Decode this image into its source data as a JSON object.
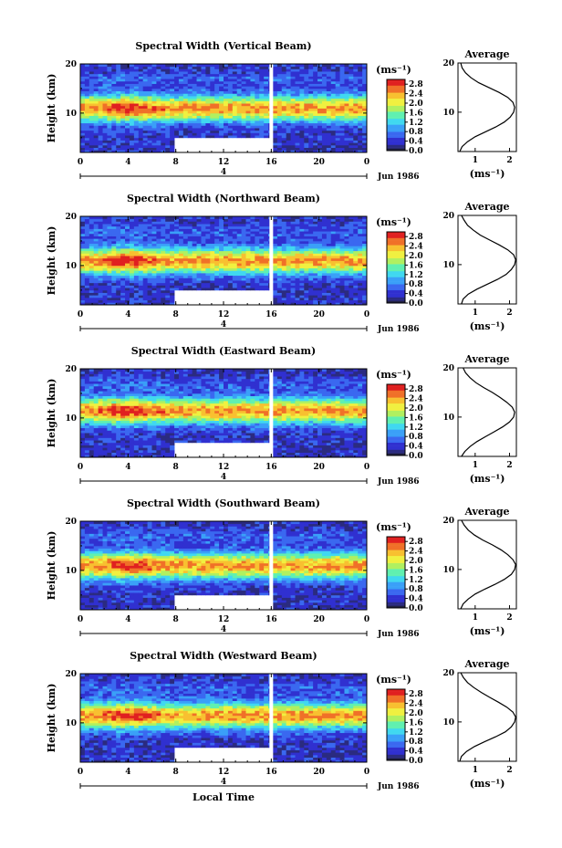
{
  "chart_data": [
    {
      "type": "heatmap",
      "title": "Spectral Width (Vertical Beam)",
      "ylabel": "Height (km)",
      "xticks": [
        "0",
        "4",
        "8",
        "12",
        "16",
        "20",
        "0"
      ],
      "yticks": [
        "20",
        "10"
      ],
      "xlim": [
        0,
        24
      ],
      "ylim": [
        2,
        20
      ],
      "date_label": "Jun 1986",
      "day_label": "4",
      "colorbar": {
        "label": "(ms⁻¹)",
        "ticks": [
          "2.8",
          "2.4",
          "2.0",
          "1.6",
          "1.2",
          "0.8",
          "0.4",
          "0.0"
        ],
        "range": [
          0,
          3.0
        ]
      },
      "gaps": [
        {
          "x0": 8,
          "x1": 16,
          "y0": 2,
          "y1": 5
        }
      ],
      "data_gap_line_x": 16,
      "band_peak_height_km": 11,
      "average_profile": {
        "title": "Average",
        "xlabel": "(ms⁻¹)",
        "xticks": [
          "1",
          "2"
        ],
        "xlim": [
          0.5,
          2.2
        ],
        "yticks": [
          "20",
          "10"
        ],
        "heights_km": [
          2,
          3,
          4,
          5,
          6,
          7,
          8,
          9,
          10,
          11,
          12,
          13,
          14,
          15,
          16,
          17,
          18,
          19,
          20
        ],
        "values": [
          0.55,
          0.62,
          0.78,
          1.0,
          1.3,
          1.6,
          1.85,
          2.02,
          2.12,
          2.15,
          2.1,
          1.95,
          1.7,
          1.4,
          1.1,
          0.88,
          0.72,
          0.62,
          0.58
        ]
      }
    },
    {
      "type": "heatmap",
      "title": "Spectral Width (Northward Beam)",
      "ylabel": "Height (km)",
      "xticks": [
        "0",
        "4",
        "8",
        "12",
        "16",
        "20",
        "0"
      ],
      "yticks": [
        "20",
        "10"
      ],
      "xlim": [
        0,
        24
      ],
      "ylim": [
        2,
        20
      ],
      "date_label": "Jun 1986",
      "day_label": "4",
      "colorbar": {
        "label": "(ms⁻¹)",
        "ticks": [
          "2.8",
          "2.4",
          "2.0",
          "1.6",
          "1.2",
          "0.8",
          "0.4",
          "0.0"
        ],
        "range": [
          0,
          3.0
        ]
      },
      "gaps": [
        {
          "x0": 8,
          "x1": 16,
          "y0": 2,
          "y1": 5
        }
      ],
      "data_gap_line_x": 16,
      "band_peak_height_km": 11,
      "average_profile": {
        "title": "Average",
        "xlabel": "(ms⁻¹)",
        "xticks": [
          "1",
          "2"
        ],
        "xlim": [
          0.5,
          2.2
        ],
        "yticks": [
          "20",
          "10"
        ],
        "heights_km": [
          2,
          3,
          4,
          5,
          6,
          7,
          8,
          9,
          10,
          11,
          12,
          13,
          14,
          15,
          16,
          17,
          18,
          19,
          20
        ],
        "values": [
          0.6,
          0.65,
          0.8,
          1.05,
          1.35,
          1.65,
          1.9,
          2.05,
          2.15,
          2.18,
          2.12,
          1.95,
          1.7,
          1.42,
          1.15,
          0.95,
          0.78,
          0.68,
          0.6
        ]
      }
    },
    {
      "type": "heatmap",
      "title": "Spectral Width (Eastward Beam)",
      "ylabel": "Height (km)",
      "xticks": [
        "0",
        "4",
        "8",
        "12",
        "16",
        "20",
        "0"
      ],
      "yticks": [
        "20",
        "10"
      ],
      "xlim": [
        0,
        24
      ],
      "ylim": [
        2,
        20
      ],
      "date_label": "Jun 1986",
      "day_label": "4",
      "colorbar": {
        "label": "(ms⁻¹)",
        "ticks": [
          "2.8",
          "2.4",
          "2.0",
          "1.6",
          "1.2",
          "0.8",
          "0.4",
          "0.0"
        ],
        "range": [
          0,
          3.0
        ]
      },
      "gaps": [
        {
          "x0": 8,
          "x1": 16,
          "y0": 2,
          "y1": 5
        }
      ],
      "data_gap_line_x": 16,
      "band_peak_height_km": 11.5,
      "average_profile": {
        "title": "Average",
        "xlabel": "(ms⁻¹)",
        "xticks": [
          "1",
          "2"
        ],
        "xlim": [
          0.5,
          2.2
        ],
        "yticks": [
          "20",
          "10"
        ],
        "heights_km": [
          2,
          3,
          4,
          5,
          6,
          7,
          8,
          9,
          10,
          11,
          12,
          13,
          14,
          15,
          16,
          17,
          18,
          19,
          20
        ],
        "values": [
          0.6,
          0.7,
          0.85,
          1.05,
          1.3,
          1.55,
          1.8,
          2.0,
          2.12,
          2.15,
          2.08,
          1.92,
          1.72,
          1.5,
          1.25,
          1.02,
          0.85,
          0.72,
          0.65
        ]
      }
    },
    {
      "type": "heatmap",
      "title": "Spectral Width (Southward Beam)",
      "ylabel": "Height (km)",
      "xticks": [
        "0",
        "4",
        "8",
        "12",
        "16",
        "20",
        "0"
      ],
      "yticks": [
        "20",
        "10"
      ],
      "xlim": [
        0,
        24
      ],
      "ylim": [
        2,
        20
      ],
      "date_label": "Jun 1986",
      "day_label": "4",
      "colorbar": {
        "label": "(ms⁻¹)",
        "ticks": [
          "2.8",
          "2.4",
          "2.0",
          "1.6",
          "1.2",
          "0.8",
          "0.4",
          "0.0"
        ],
        "range": [
          0,
          3.0
        ]
      },
      "gaps": [
        {
          "x0": 8,
          "x1": 16,
          "y0": 2,
          "y1": 5
        }
      ],
      "data_gap_line_x": 16,
      "band_peak_height_km": 11,
      "average_profile": {
        "title": "Average",
        "xlabel": "(ms⁻¹)",
        "xticks": [
          "1",
          "2"
        ],
        "xlim": [
          0.5,
          2.2
        ],
        "yticks": [
          "20",
          "10"
        ],
        "heights_km": [
          2,
          3,
          4,
          5,
          6,
          7,
          8,
          9,
          10,
          11,
          12,
          13,
          14,
          15,
          16,
          17,
          18,
          19,
          20
        ],
        "values": [
          0.58,
          0.65,
          0.8,
          1.0,
          1.28,
          1.58,
          1.85,
          2.05,
          2.15,
          2.18,
          2.1,
          1.95,
          1.75,
          1.5,
          1.22,
          0.98,
          0.8,
          0.68,
          0.6
        ]
      }
    },
    {
      "type": "heatmap",
      "title": "Spectral Width (Westward Beam)",
      "ylabel": "Height (km)",
      "xlabel": "Local Time",
      "xticks": [
        "0",
        "4",
        "8",
        "12",
        "16",
        "20",
        "0"
      ],
      "yticks": [
        "20",
        "10"
      ],
      "xlim": [
        0,
        24
      ],
      "ylim": [
        2,
        20
      ],
      "date_label": "Jun 1986",
      "day_label": "4",
      "colorbar": {
        "label": "(ms⁻¹)",
        "ticks": [
          "2.8",
          "2.4",
          "2.0",
          "1.6",
          "1.2",
          "0.8",
          "0.4",
          "0.0"
        ],
        "range": [
          0,
          3.0
        ]
      },
      "gaps": [
        {
          "x0": 8,
          "x1": 16,
          "y0": 2,
          "y1": 5
        }
      ],
      "data_gap_line_x": 16,
      "band_peak_height_km": 11.5,
      "average_profile": {
        "title": "Average",
        "xlabel": "(ms⁻¹)",
        "xticks": [
          "1",
          "2"
        ],
        "xlim": [
          0.5,
          2.2
        ],
        "yticks": [
          "20",
          "10"
        ],
        "heights_km": [
          2,
          3,
          4,
          5,
          6,
          7,
          8,
          9,
          10,
          11,
          12,
          13,
          14,
          15,
          16,
          17,
          18,
          19,
          20
        ],
        "values": [
          0.55,
          0.6,
          0.75,
          0.98,
          1.28,
          1.6,
          1.88,
          2.05,
          2.15,
          2.18,
          2.1,
          1.92,
          1.68,
          1.42,
          1.18,
          0.96,
          0.78,
          0.66,
          0.58
        ]
      }
    }
  ],
  "colors": {
    "scale": [
      "#2b2b80",
      "#3030d0",
      "#3a68f0",
      "#3aa0f8",
      "#40d8f0",
      "#60f0b0",
      "#b0f060",
      "#f0f040",
      "#f8c030",
      "#f07028",
      "#e02020"
    ],
    "bar_bottom": "#202040"
  }
}
